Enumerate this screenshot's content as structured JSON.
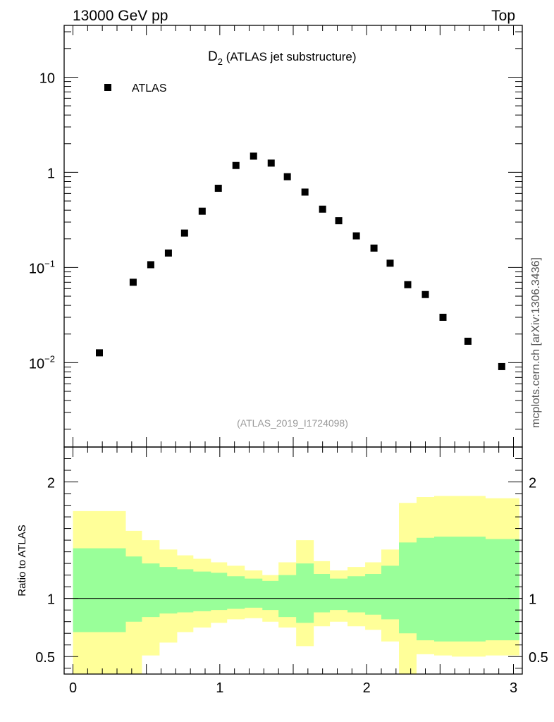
{
  "header": {
    "left_label": "13000 GeV pp",
    "right_label": "Top",
    "side_label": "mcplots.cern.ch [arXiv:1306.3436]"
  },
  "chart_data": [
    {
      "type": "scatter",
      "title_main": "D",
      "title_sub": "2",
      "title_rest": " (ATLAS jet substructure)",
      "analysis_label": "(ATLAS_2019_I1724098)",
      "legend": [
        "ATLAS"
      ],
      "legend_position": "top-left",
      "xlim": [
        -0.06,
        3.06
      ],
      "yscale": "log",
      "ylim": [
        0.0013,
        35
      ],
      "ytick_labels": [
        {
          "value": 10,
          "base": "10",
          "exp": ""
        },
        {
          "value": 1,
          "base": "1",
          "exp": ""
        },
        {
          "value": 0.1,
          "base": "10",
          "exp": "−1"
        },
        {
          "value": 0.01,
          "base": "10",
          "exp": "−2"
        }
      ],
      "series": [
        {
          "name": "ATLAS",
          "x": [
            0.18,
            0.41,
            0.53,
            0.65,
            0.76,
            0.88,
            0.99,
            1.11,
            1.23,
            1.35,
            1.46,
            1.58,
            1.7,
            1.81,
            1.93,
            2.05,
            2.16,
            2.28,
            2.4,
            2.52,
            2.69,
            2.92
          ],
          "y": [
            0.0127,
            0.07,
            0.107,
            0.142,
            0.23,
            0.39,
            0.68,
            1.18,
            1.48,
            1.25,
            0.9,
            0.62,
            0.41,
            0.31,
            0.215,
            0.16,
            0.111,
            0.066,
            0.052,
            0.03,
            0.0168,
            0.0091
          ]
        }
      ]
    },
    {
      "type": "area",
      "ylabel": "Ratio to ATLAS",
      "xlim": [
        -0.06,
        3.06
      ],
      "ylim": [
        0.35,
        2.3
      ],
      "x_tick_labels": [
        {
          "value": 0,
          "label": "0"
        },
        {
          "value": 1,
          "label": "1"
        },
        {
          "value": 2,
          "label": "2"
        },
        {
          "value": 3,
          "label": "3"
        }
      ],
      "y_tick_labels": [
        {
          "value": 2,
          "label": "2"
        },
        {
          "value": 1,
          "label": "1"
        },
        {
          "value": 0.5,
          "label": "0.5"
        }
      ],
      "reference_line": 1,
      "bin_edges": [
        0.0,
        0.36,
        0.47,
        0.59,
        0.71,
        0.82,
        0.94,
        1.05,
        1.17,
        1.29,
        1.4,
        1.52,
        1.64,
        1.75,
        1.87,
        1.99,
        2.1,
        2.22,
        2.34,
        2.46,
        2.58,
        2.81,
        3.04
      ],
      "band_1sigma": {
        "color": "#99ff99",
        "upper": [
          1.43,
          1.36,
          1.3,
          1.27,
          1.25,
          1.23,
          1.22,
          1.19,
          1.17,
          1.15,
          1.2,
          1.3,
          1.21,
          1.17,
          1.19,
          1.21,
          1.28,
          1.48,
          1.52,
          1.53,
          1.53,
          1.51
        ],
        "lower": [
          0.71,
          0.8,
          0.84,
          0.87,
          0.88,
          0.89,
          0.9,
          0.91,
          0.92,
          0.9,
          0.84,
          0.79,
          0.88,
          0.9,
          0.88,
          0.86,
          0.82,
          0.7,
          0.64,
          0.63,
          0.63,
          0.64
        ]
      },
      "band_2sigma": {
        "color": "#ffff99",
        "upper": [
          1.75,
          1.58,
          1.5,
          1.42,
          1.37,
          1.34,
          1.31,
          1.28,
          1.24,
          1.2,
          1.31,
          1.5,
          1.32,
          1.24,
          1.27,
          1.31,
          1.42,
          1.82,
          1.87,
          1.88,
          1.88,
          1.86
        ],
        "lower": [
          0.22,
          0.34,
          0.51,
          0.62,
          0.71,
          0.75,
          0.79,
          0.82,
          0.83,
          0.8,
          0.75,
          0.59,
          0.76,
          0.8,
          0.76,
          0.73,
          0.63,
          0.22,
          0.52,
          0.51,
          0.5,
          0.51
        ]
      }
    }
  ]
}
